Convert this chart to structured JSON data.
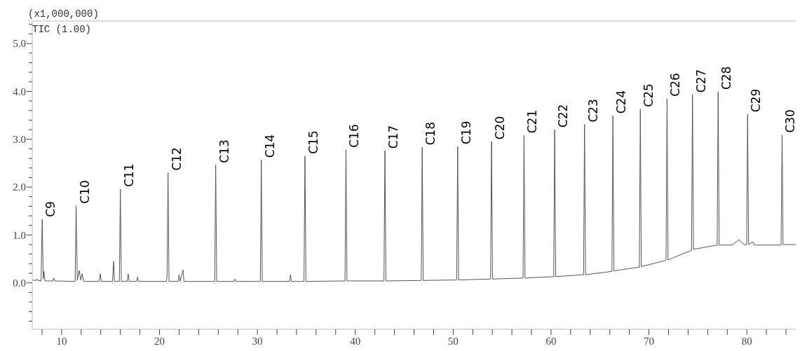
{
  "chart_data": {
    "type": "line",
    "annotations": [
      "(x1,000,000)",
      "TIC (1.00)",
      {
        "text": "C9",
        "x": 8.02,
        "y": 1.33
      },
      {
        "text": "C10",
        "x": 11.48,
        "y": 1.61
      },
      {
        "text": "C11",
        "x": 16.0,
        "y": 1.96
      },
      {
        "text": "C12",
        "x": 20.87,
        "y": 2.3
      },
      {
        "text": "C13",
        "x": 25.74,
        "y": 2.46
      },
      {
        "text": "C14",
        "x": 30.4,
        "y": 2.57
      },
      {
        "text": "C15",
        "x": 34.86,
        "y": 2.65
      },
      {
        "text": "C16",
        "x": 39.05,
        "y": 2.78
      },
      {
        "text": "C17",
        "x": 43.03,
        "y": 2.76
      },
      {
        "text": "C18",
        "x": 46.84,
        "y": 2.83
      },
      {
        "text": "C19",
        "x": 50.46,
        "y": 2.85
      },
      {
        "text": "C20",
        "x": 53.92,
        "y": 2.95
      },
      {
        "text": "C21",
        "x": 57.24,
        "y": 3.08
      },
      {
        "text": "C22",
        "x": 60.37,
        "y": 3.2
      },
      {
        "text": "C23",
        "x": 63.42,
        "y": 3.31
      },
      {
        "text": "C24",
        "x": 66.32,
        "y": 3.49
      },
      {
        "text": "C25",
        "x": 69.12,
        "y": 3.63
      },
      {
        "text": "C26",
        "x": 71.85,
        "y": 3.85
      },
      {
        "text": "C27",
        "x": 74.45,
        "y": 3.93
      },
      {
        "text": "C28",
        "x": 77.07,
        "y": 3.99
      },
      {
        "text": "C29",
        "x": 80.08,
        "y": 3.52
      },
      {
        "text": "C30",
        "x": 83.6,
        "y": 3.09
      }
    ],
    "xlim": [
      7,
      85
    ],
    "ylim": [
      -0.97,
      5.47
    ],
    "xticks": [
      {
        "value": 8,
        "label": null
      },
      10,
      {
        "value": 12,
        "label": null
      },
      {
        "value": 14,
        "label": null
      },
      {
        "value": 16,
        "label": null
      },
      {
        "value": 18,
        "label": null
      },
      20,
      {
        "value": 22,
        "label": null
      },
      {
        "value": 24,
        "label": null
      },
      {
        "value": 26,
        "label": null
      },
      {
        "value": 28,
        "label": null
      },
      30,
      {
        "value": 32,
        "label": null
      },
      {
        "value": 34,
        "label": null
      },
      {
        "value": 36,
        "label": null
      },
      {
        "value": 38,
        "label": null
      },
      40,
      {
        "value": 42,
        "label": null
      },
      {
        "value": 44,
        "label": null
      },
      {
        "value": 46,
        "label": null
      },
      {
        "value": 48,
        "label": null
      },
      50,
      {
        "value": 52,
        "label": null
      },
      {
        "value": 54,
        "label": null
      },
      {
        "value": 56,
        "label": null
      },
      {
        "value": 58,
        "label": null
      },
      60,
      {
        "value": 62,
        "label": null
      },
      {
        "value": 64,
        "label": null
      },
      {
        "value": 66,
        "label": null
      },
      {
        "value": 68,
        "label": null
      },
      70,
      {
        "value": 72,
        "label": null
      },
      {
        "value": 74,
        "label": null
      },
      {
        "value": 76,
        "label": null
      },
      {
        "value": 78,
        "label": null
      },
      80,
      {
        "value": 82,
        "label": null
      },
      {
        "value": 84,
        "label": null
      }
    ],
    "yticks": [
      {
        "value": -0.8,
        "label": null
      },
      {
        "value": -0.6,
        "label": null
      },
      {
        "value": -0.4,
        "label": null
      },
      {
        "value": -0.2,
        "label": null
      },
      {
        "value": 0,
        "label": "0.0"
      },
      {
        "value": 0.2,
        "label": null
      },
      {
        "value": 0.4,
        "label": null
      },
      {
        "value": 0.6,
        "label": null
      },
      {
        "value": 0.8,
        "label": null
      },
      {
        "value": 1,
        "label": "1.0"
      },
      {
        "value": 1.2,
        "label": null
      },
      {
        "value": 1.4,
        "label": null
      },
      {
        "value": 1.6,
        "label": null
      },
      {
        "value": 1.8,
        "label": null
      },
      {
        "value": 2,
        "label": "2.0"
      },
      {
        "value": 2.2,
        "label": null
      },
      {
        "value": 2.4,
        "label": null
      },
      {
        "value": 2.6,
        "label": null
      },
      {
        "value": 2.8,
        "label": null
      },
      {
        "value": 3,
        "label": "3.0"
      },
      {
        "value": 3.2,
        "label": null
      },
      {
        "value": 3.4,
        "label": null
      },
      {
        "value": 3.6,
        "label": null
      },
      {
        "value": 3.8,
        "label": null
      },
      {
        "value": 4,
        "label": "4.0"
      },
      {
        "value": 4.2,
        "label": null
      },
      {
        "value": 4.4,
        "label": null
      },
      {
        "value": 4.6,
        "label": null
      },
      {
        "value": 4.8,
        "label": null
      },
      {
        "value": 5,
        "label": "5.0"
      },
      {
        "value": 5.2,
        "label": null
      },
      {
        "value": 5.4,
        "label": null
      }
    ],
    "grid": false,
    "marker": "none",
    "line_style": "solid",
    "series": [
      {
        "color": "#555555",
        "x": [
          7.0,
          7.4,
          7.5,
          7.6,
          7.9,
          8.02,
          8.12,
          8.2,
          8.3,
          9.1,
          9.2,
          9.3,
          11.38,
          11.48,
          11.6,
          11.8,
          11.95,
          12.1,
          12.25,
          13.85,
          13.95,
          14.05,
          15.2,
          15.31,
          15.4,
          15.9,
          16.0,
          16.1,
          16.7,
          16.8,
          16.9,
          17.66,
          17.76,
          17.86,
          20.7,
          20.77,
          20.87,
          20.97,
          21.9,
          22.0,
          22.1,
          22.4,
          22.5,
          25.64,
          25.74,
          25.84,
          27.6,
          27.7,
          27.8,
          30.3,
          30.4,
          30.5,
          33.28,
          33.38,
          33.48,
          34.76,
          34.86,
          34.96,
          38.95,
          39.05,
          39.15,
          42.93,
          43.03,
          43.13,
          46.74,
          46.84,
          46.94,
          50.36,
          50.46,
          50.56,
          53.82,
          53.92,
          54.02,
          57.14,
          57.24,
          57.34,
          60.27,
          60.37,
          60.47,
          63.32,
          63.42,
          63.52,
          66.22,
          66.32,
          66.42,
          69.02,
          69.12,
          69.22,
          71.75,
          71.85,
          71.95,
          74.35,
          74.45,
          74.55,
          76.97,
          77.07,
          77.17,
          78.5,
          79.2,
          79.7,
          79.98,
          80.08,
          80.18,
          80.6,
          80.75,
          83.5,
          83.6,
          83.7,
          85.0
        ],
        "values": [
          0.06,
          0.05,
          0.08,
          0.05,
          0.04,
          1.33,
          0.08,
          0.24,
          0.04,
          0.04,
          0.1,
          0.04,
          0.03,
          1.61,
          0.05,
          0.26,
          0.06,
          0.19,
          0.03,
          0.03,
          0.19,
          0.03,
          0.03,
          0.45,
          0.03,
          0.03,
          1.96,
          0.03,
          0.03,
          0.19,
          0.03,
          0.03,
          0.12,
          0.03,
          0.03,
          0.13,
          2.3,
          0.03,
          0.03,
          0.17,
          0.03,
          0.27,
          0.03,
          0.03,
          2.46,
          0.03,
          0.03,
          0.08,
          0.03,
          0.03,
          2.57,
          0.03,
          0.03,
          0.17,
          0.03,
          0.03,
          2.65,
          0.03,
          0.04,
          2.78,
          0.04,
          0.04,
          2.76,
          0.04,
          0.05,
          2.83,
          0.05,
          0.06,
          2.85,
          0.06,
          0.08,
          2.95,
          0.08,
          0.1,
          3.08,
          0.1,
          0.13,
          3.2,
          0.13,
          0.17,
          3.31,
          0.17,
          0.24,
          3.49,
          0.25,
          0.33,
          3.63,
          0.34,
          0.47,
          3.85,
          0.48,
          0.68,
          3.93,
          0.7,
          0.79,
          3.99,
          0.79,
          0.79,
          0.9,
          0.8,
          0.8,
          3.52,
          0.8,
          0.86,
          0.79,
          0.79,
          3.09,
          0.8,
          0.8
        ]
      }
    ]
  }
}
